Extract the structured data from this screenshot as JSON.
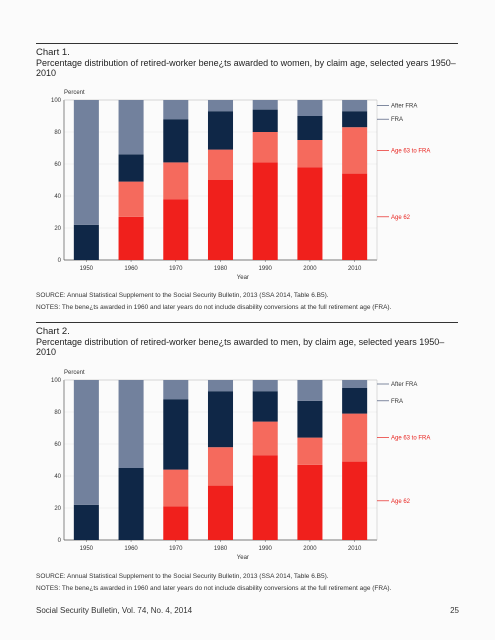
{
  "charts": [
    {
      "number": "Chart 1.",
      "title": "Percentage distribution of retired-worker bene¿ts awarded to women, by claim age, selected years 1950–2010",
      "source": "SOURCE: Annual Statistical Supplement to the Social Security Bulletin, 2013 (SSA 2014, Table 6.B5).",
      "notes": "NOTES: The bene¿ts awarded in 1960 and later years do not include disability conversions at the full retirement age (FRA)."
    },
    {
      "number": "Chart 2.",
      "title": "Percentage distribution of retired-worker bene¿ts awarded to men, by claim age, selected years 1950–2010",
      "source": "SOURCE: Annual Statistical Supplement to the Social Security Bulletin, 2013 (SSA 2014, Table 6.B5).",
      "notes": "NOTES: The bene¿ts awarded in 1960 and later years do not include disability conversions at the full retirement age (FRA)."
    }
  ],
  "chart_data": [
    {
      "type": "bar",
      "stacked": true,
      "ylabel": "Percent",
      "xlabel": "Year",
      "ylim": [
        0,
        100
      ],
      "yticks": [
        0,
        20,
        40,
        60,
        80,
        100
      ],
      "categories": [
        "1950",
        "1960",
        "1970",
        "1980",
        "1990",
        "2000",
        "2010"
      ],
      "series": [
        {
          "name": "Age 62",
          "color": "#f0201c",
          "values": [
            0,
            27,
            38,
            50,
            61,
            58,
            54
          ]
        },
        {
          "name": "Age 63 to FRA",
          "color": "#f56a5d",
          "values": [
            0,
            22,
            23,
            19,
            19,
            17,
            29
          ]
        },
        {
          "name": "FRA",
          "color": "#0f2747",
          "values": [
            22,
            17,
            27,
            24,
            14,
            15,
            10
          ]
        },
        {
          "name": "After FRA",
          "color": "#72819d",
          "values": [
            78,
            34,
            12,
            7,
            6,
            10,
            7
          ]
        }
      ]
    },
    {
      "type": "bar",
      "stacked": true,
      "ylabel": "Percent",
      "xlabel": "Year",
      "ylim": [
        0,
        100
      ],
      "yticks": [
        0,
        20,
        40,
        60,
        80,
        100
      ],
      "categories": [
        "1950",
        "1960",
        "1970",
        "1980",
        "1990",
        "2000",
        "2010"
      ],
      "series": [
        {
          "name": "Age 62",
          "color": "#f0201c",
          "values": [
            0,
            0,
            21,
            34,
            53,
            47,
            49
          ]
        },
        {
          "name": "Age 63 to FRA",
          "color": "#f56a5d",
          "values": [
            0,
            0,
            23,
            24,
            21,
            17,
            30
          ]
        },
        {
          "name": "FRA",
          "color": "#0f2747",
          "values": [
            22,
            45,
            44,
            35,
            19,
            23,
            16
          ]
        },
        {
          "name": "After FRA",
          "color": "#72819d",
          "values": [
            78,
            55,
            12,
            7,
            7,
            13,
            5
          ]
        }
      ]
    }
  ],
  "footer": {
    "journal": "Social Security Bulletin, Vol. 74, No. 4, 2014",
    "page": "25"
  }
}
